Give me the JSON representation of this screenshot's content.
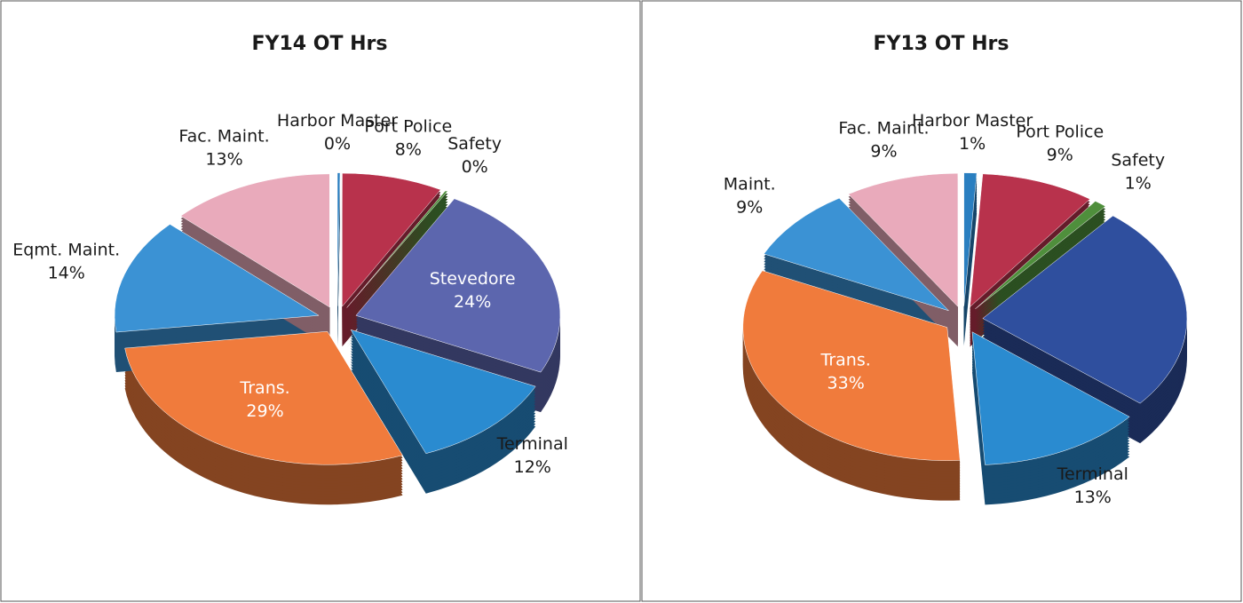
{
  "chart_data": [
    {
      "type": "pie",
      "title": "FY14 OT Hrs",
      "categories": [
        "Harbor Master",
        "Port Police",
        "Safety",
        "Stevedore",
        "Terminal",
        "Trans.",
        "Eqmt. Maint.",
        "Fac. Maint."
      ],
      "values": [
        0,
        8,
        0,
        24,
        12,
        29,
        14,
        13
      ],
      "value_labels": [
        "0%",
        "8%",
        "0%",
        "24%",
        "12%",
        "29%",
        "14%",
        "13%"
      ],
      "colors": [
        "#2a7fc0",
        "#b8324c",
        "#4f8f3c",
        "#5c66ae",
        "#2a8bd0",
        "#f07b3c",
        "#3b92d4",
        "#e9aabb"
      ]
    },
    {
      "type": "pie",
      "title": "FY13 OT Hrs",
      "categories": [
        "Harbor Master",
        "Port Police",
        "Safety",
        null,
        "Terminal",
        "Trans.",
        "Maint.",
        "Fac. Maint."
      ],
      "values": [
        1,
        9,
        1,
        25,
        13,
        33,
        9,
        9
      ],
      "value_labels": [
        "1%",
        "9%",
        "1%",
        null,
        "13%",
        "33%",
        "9%",
        "9%"
      ],
      "colors": [
        "#2a7fc0",
        "#b8324c",
        "#4f8f3c",
        "#2f4f9e",
        "#2a8bd0",
        "#f07b3c",
        "#3b92d4",
        "#e9aabb"
      ]
    }
  ]
}
